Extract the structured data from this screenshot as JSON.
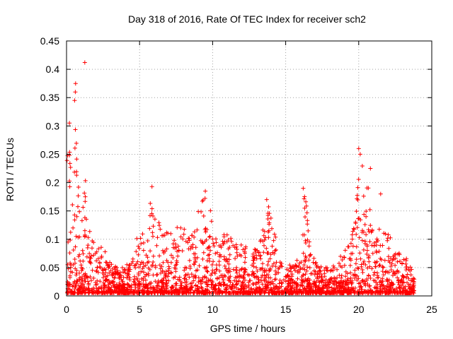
{
  "chart_data": {
    "type": "scatter",
    "title": "Day 318 of 2016, Rate Of TEC Index for receiver sch2",
    "xlabel": "GPS time / hours",
    "ylabel": "ROTI / TECUs",
    "xlim": [
      0,
      25
    ],
    "ylim": [
      0,
      0.45
    ],
    "xticks": [
      "0",
      "5",
      "10",
      "15",
      "20",
      "25"
    ],
    "yticks": [
      "0",
      "0.05",
      "0.1",
      "0.15",
      "0.2",
      "0.25",
      "0.3",
      "0.35",
      "0.4",
      "0.45"
    ],
    "grid": true,
    "marker": "+",
    "color": "#ff0000",
    "envelope_hours": [
      0,
      0.2,
      0.4,
      0.6,
      0.8,
      1.0,
      1.3,
      1.5,
      1.8,
      2.2,
      2.6,
      3.0,
      3.5,
      4.0,
      4.5,
      5.0,
      5.5,
      5.8,
      6.1,
      6.5,
      7.0,
      7.5,
      8.0,
      8.5,
      9.0,
      9.5,
      9.8,
      10.2,
      10.6,
      11.0,
      11.5,
      12.0,
      12.5,
      13.0,
      13.5,
      13.8,
      14.2,
      14.6,
      15.0,
      15.5,
      16.0,
      16.3,
      16.6,
      17.0,
      17.5,
      18.0,
      18.5,
      19.0,
      19.5,
      19.8,
      20.1,
      20.4,
      20.7,
      21.0,
      21.4,
      21.8,
      22.2,
      22.6,
      23.0,
      23.4,
      23.8
    ],
    "envelope_roti": [
      0.25,
      0.3,
      0.24,
      0.37,
      0.2,
      0.12,
      0.23,
      0.14,
      0.1,
      0.09,
      0.08,
      0.06,
      0.05,
      0.05,
      0.07,
      0.12,
      0.1,
      0.19,
      0.15,
      0.12,
      0.11,
      0.13,
      0.12,
      0.1,
      0.15,
      0.18,
      0.16,
      0.1,
      0.11,
      0.12,
      0.09,
      0.1,
      0.09,
      0.08,
      0.13,
      0.17,
      0.12,
      0.06,
      0.05,
      0.06,
      0.07,
      0.19,
      0.12,
      0.06,
      0.05,
      0.05,
      0.06,
      0.08,
      0.1,
      0.15,
      0.26,
      0.2,
      0.22,
      0.15,
      0.14,
      0.13,
      0.1,
      0.07,
      0.1,
      0.06,
      0.04
    ],
    "outliers": [
      {
        "x": 1.25,
        "y": 0.412
      },
      {
        "x": 0.62,
        "y": 0.375
      },
      {
        "x": 0.6,
        "y": 0.36
      },
      {
        "x": 0.55,
        "y": 0.345
      },
      {
        "x": 0.2,
        "y": 0.305
      },
      {
        "x": 20.0,
        "y": 0.26
      },
      {
        "x": 20.1,
        "y": 0.25
      },
      {
        "x": 20.8,
        "y": 0.225
      },
      {
        "x": 16.2,
        "y": 0.19
      },
      {
        "x": 5.85,
        "y": 0.193
      },
      {
        "x": 9.5,
        "y": 0.185
      },
      {
        "x": 13.7,
        "y": 0.17
      },
      {
        "x": 16.3,
        "y": 0.155
      },
      {
        "x": 21.5,
        "y": 0.18
      }
    ]
  }
}
